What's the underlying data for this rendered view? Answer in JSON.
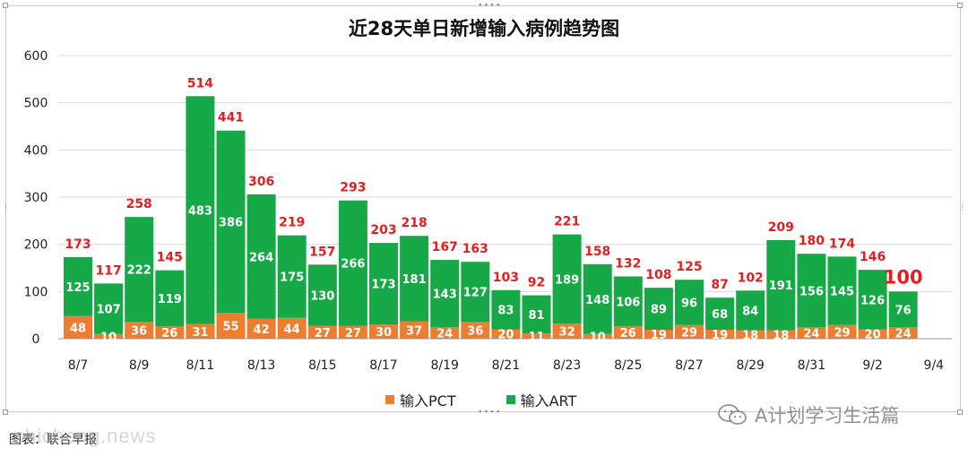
{
  "chart_data": {
    "type": "bar",
    "stacked": true,
    "title": "近28天单日新增输入病例趋势图",
    "categories": [
      "8/7",
      "8/8",
      "8/9",
      "8/10",
      "8/11",
      "8/12",
      "8/13",
      "8/14",
      "8/15",
      "8/16",
      "8/17",
      "8/18",
      "8/19",
      "8/20",
      "8/21",
      "8/22",
      "8/23",
      "8/24",
      "8/25",
      "8/26",
      "8/27",
      "8/28",
      "8/29",
      "8/30",
      "8/31",
      "9/1",
      "9/2",
      "9/3",
      "9/4"
    ],
    "x_tick_labels": [
      "8/7",
      "8/9",
      "8/11",
      "8/13",
      "8/15",
      "8/17",
      "8/19",
      "8/21",
      "8/23",
      "8/25",
      "8/27",
      "8/29",
      "8/31",
      "9/2",
      "9/4"
    ],
    "series": [
      {
        "name": "输入PCT",
        "color": "#ed7d31",
        "values": [
          48,
          10,
          36,
          26,
          31,
          55,
          42,
          44,
          27,
          27,
          30,
          37,
          24,
          36,
          20,
          11,
          32,
          10,
          26,
          19,
          29,
          19,
          18,
          18,
          24,
          29,
          20,
          24,
          null
        ]
      },
      {
        "name": "输入ART",
        "color": "#17a847",
        "values": [
          125,
          107,
          222,
          119,
          483,
          386,
          264,
          175,
          130,
          266,
          173,
          181,
          143,
          127,
          83,
          81,
          189,
          148,
          106,
          89,
          96,
          68,
          84,
          191,
          156,
          145,
          126,
          76,
          null
        ]
      }
    ],
    "totals": [
      "173",
      "117",
      "258",
      "145",
      "514",
      "441",
      "306",
      "219",
      "157",
      "293",
      "203",
      "218",
      "167",
      "163",
      "103",
      "92",
      "221",
      "158",
      "132",
      "108",
      "125",
      "87",
      "102",
      "209",
      "180",
      "174",
      "146",
      "100",
      ""
    ],
    "highlight_total_index": 27,
    "ylim": [
      0,
      600
    ],
    "yticks": [
      "0",
      "100",
      "200",
      "300",
      "400",
      "500",
      "600"
    ],
    "grid": true,
    "legend_position": "bottom"
  },
  "legend": {
    "pct_label": "输入PCT",
    "art_label": "输入ART"
  },
  "watermark": {
    "right_text": "A计划学习生活篇",
    "left_text": "shicheng.news"
  },
  "source": {
    "text": "图表：联合早报"
  },
  "colors": {
    "pct": "#ed7d31",
    "art": "#17a847",
    "total_label": "#e02020",
    "highlight_label": "#e02020"
  }
}
